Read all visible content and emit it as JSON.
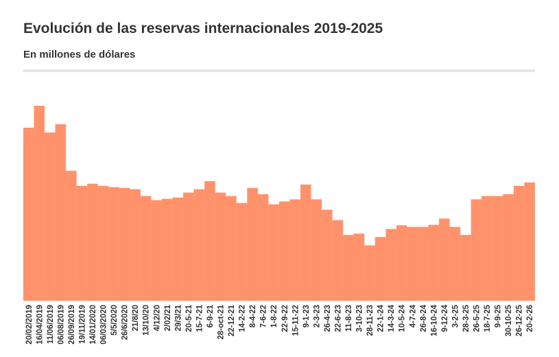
{
  "chart_data": {
    "type": "area",
    "title": "Evolución de las reservas internacionales 2019-2025",
    "subtitle": "En millones de dólares",
    "xlabel": "",
    "ylabel": "",
    "ylim": [
      0,
      88000
    ],
    "grid": false,
    "legend": "none",
    "color": "#FF8F66",
    "categories": [
      "20/02/2019",
      "16/04/2019",
      "11/06/2019",
      "06/08/2019",
      "26/09/2019",
      "19/11/2019",
      "14/01/2020",
      "06/03/2020",
      "5/5/2020",
      "26/6/2020",
      "21/8/20",
      "13/10/20",
      "4/12/20",
      "2/02/21",
      "29/3/21",
      "20-5-21",
      "15-7-21",
      "6-9-21",
      "28-oct-21",
      "22-12-21",
      "14-2-22",
      "8-4-22",
      "7-6-22",
      "1-8-22",
      "22-9-22",
      "15-11-22",
      "9-1-23",
      "2-3-23",
      "26-4-23",
      "22-6-23",
      "11-8-23",
      "3-10-23",
      "28-11-23",
      "22-1-24",
      "14-3-24",
      "10-5-24",
      "4-7-24",
      "26-8-24",
      "16-10-24",
      "9-12-24",
      "3-2-25",
      "28-3-25",
      "26-5-25",
      "18-7-25",
      "9-9-25",
      "30-10-25",
      "26-12-25",
      "20-2-26"
    ],
    "values": [
      66600,
      75000,
      64700,
      67900,
      50000,
      44200,
      45000,
      44200,
      43700,
      43400,
      42900,
      40300,
      38700,
      39200,
      39700,
      41600,
      42900,
      46000,
      41600,
      40300,
      37600,
      43400,
      41000,
      37100,
      38200,
      39000,
      44700,
      39000,
      35000,
      31000,
      25300,
      25800,
      21300,
      24500,
      27600,
      29000,
      28400,
      28400,
      29200,
      31600,
      28400,
      25300,
      39000,
      40300,
      40300,
      41000,
      44200,
      45500
    ]
  }
}
